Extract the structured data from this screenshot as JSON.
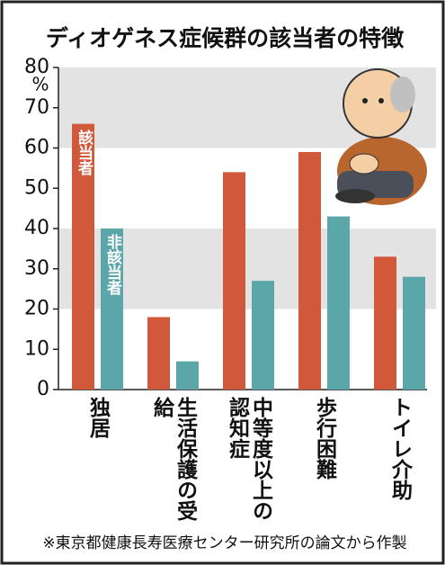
{
  "chart_data": {
    "type": "bar",
    "title": "ディオゲネス症候群の該当者の特徴",
    "y_unit": "%",
    "categories": [
      "独居",
      "生活保護の受給",
      "中等度以上の認知症",
      "歩行困難",
      "トイレ介助"
    ],
    "series": [
      {
        "name": "該当者",
        "color": "#d1583b",
        "values": [
          66,
          18,
          54,
          59,
          33
        ]
      },
      {
        "name": "非該当者",
        "color": "#5ba6a9",
        "values": [
          40,
          7,
          27,
          43,
          28
        ]
      }
    ],
    "ylim": [
      0,
      80
    ],
    "yticks": [
      0,
      10,
      20,
      30,
      40,
      50,
      60,
      70,
      80
    ],
    "band_color": "#e3e3e3",
    "footnote": "※東京都健康長寿医療センター研究所の論文から作製"
  }
}
